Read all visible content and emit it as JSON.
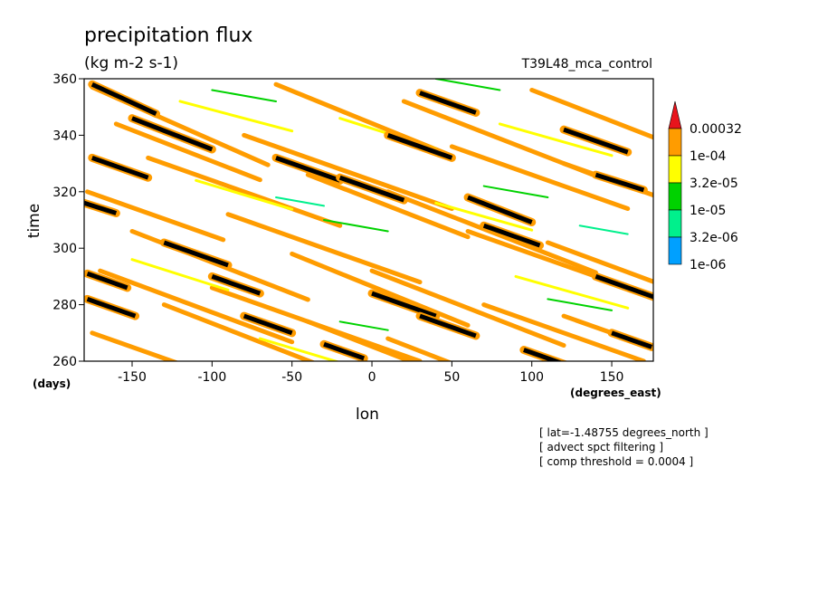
{
  "chart_data": {
    "type": "heatmap",
    "title": "precipitation flux",
    "subtitle": "(kg m-2 s-1)",
    "run_label": "T39L48_mca_control",
    "xlabel": "lon",
    "ylabel": "time",
    "x_unit_label": "(degrees_east)",
    "y_unit_label": "(days)",
    "xlim": [
      -180,
      176
    ],
    "ylim": [
      260,
      360
    ],
    "xticks": [
      -150,
      -100,
      -50,
      0,
      50,
      100,
      150
    ],
    "yticks": [
      260,
      280,
      300,
      320,
      340,
      360
    ],
    "grid": false,
    "legend_position": "right",
    "colorbar": {
      "levels": [
        "0.00032",
        "1e-04",
        "3.2e-05",
        "1e-05",
        "3.2e-06",
        "1e-06"
      ],
      "colors": [
        "#e8141c",
        "#ff9c00",
        "#ffff00",
        "#00d200",
        "#00f08c",
        "#00a0ff"
      ],
      "extend_top_color": "#e8141c"
    },
    "annotations": [
      "[ lat=-1.48755 degrees_north ]",
      "[ advect spct filtering ]",
      "[ comp threshold = 0.0004 ]"
    ],
    "features": [
      {
        "level": "1e-04",
        "x0": -175,
        "t0": 357,
        "slope": -0.25,
        "length": 110
      },
      {
        "level": "1e-04",
        "x0": -160,
        "t0": 344,
        "slope": -0.22,
        "length": 90
      },
      {
        "level": "1e-04",
        "x0": -140,
        "t0": 332,
        "slope": -0.2,
        "length": 120
      },
      {
        "level": "1e-04",
        "x0": -178,
        "t0": 320,
        "slope": -0.2,
        "length": 85
      },
      {
        "level": "1e-04",
        "x0": -150,
        "t0": 306,
        "slope": -0.22,
        "length": 110
      },
      {
        "level": "1e-04",
        "x0": -170,
        "t0": 292,
        "slope": -0.21,
        "length": 120
      },
      {
        "level": "1e-04",
        "x0": -130,
        "t0": 280,
        "slope": -0.22,
        "length": 100
      },
      {
        "level": "1e-04",
        "x0": -175,
        "t0": 270,
        "slope": -0.2,
        "length": 90
      },
      {
        "level": "1e-04",
        "x0": -60,
        "t0": 358,
        "slope": -0.23,
        "length": 110
      },
      {
        "level": "1e-04",
        "x0": -80,
        "t0": 340,
        "slope": -0.2,
        "length": 130
      },
      {
        "level": "1e-04",
        "x0": -40,
        "t0": 326,
        "slope": -0.22,
        "length": 100
      },
      {
        "level": "1e-04",
        "x0": -90,
        "t0": 312,
        "slope": -0.2,
        "length": 120
      },
      {
        "level": "1e-04",
        "x0": -50,
        "t0": 298,
        "slope": -0.23,
        "length": 110
      },
      {
        "level": "1e-04",
        "x0": -100,
        "t0": 286,
        "slope": -0.2,
        "length": 130
      },
      {
        "level": "1e-04",
        "x0": -40,
        "t0": 274,
        "slope": -0.22,
        "length": 100
      },
      {
        "level": "1e-04",
        "x0": 20,
        "t0": 352,
        "slope": -0.22,
        "length": 120
      },
      {
        "level": "1e-04",
        "x0": 50,
        "t0": 336,
        "slope": -0.2,
        "length": 110
      },
      {
        "level": "1e-04",
        "x0": 10,
        "t0": 320,
        "slope": -0.22,
        "length": 130
      },
      {
        "level": "1e-04",
        "x0": 60,
        "t0": 306,
        "slope": -0.2,
        "length": 110
      },
      {
        "level": "1e-04",
        "x0": 0,
        "t0": 292,
        "slope": -0.22,
        "length": 120
      },
      {
        "level": "1e-04",
        "x0": 70,
        "t0": 280,
        "slope": -0.2,
        "length": 100
      },
      {
        "level": "1e-04",
        "x0": 10,
        "t0": 268,
        "slope": -0.22,
        "length": 120
      },
      {
        "level": "1e-04",
        "x0": 100,
        "t0": 356,
        "slope": -0.22,
        "length": 80
      },
      {
        "level": "1e-04",
        "x0": 120,
        "t0": 330,
        "slope": -0.2,
        "length": 60
      },
      {
        "level": "1e-04",
        "x0": 110,
        "t0": 302,
        "slope": -0.21,
        "length": 70
      },
      {
        "level": "1e-04",
        "x0": 120,
        "t0": 276,
        "slope": -0.2,
        "length": 60
      },
      {
        "level": "3.2e-05",
        "x0": -120,
        "t0": 352,
        "slope": -0.15,
        "length": 70
      },
      {
        "level": "3.2e-05",
        "x0": -20,
        "t0": 346,
        "slope": -0.18,
        "length": 60
      },
      {
        "level": "3.2e-05",
        "x0": 80,
        "t0": 344,
        "slope": -0.16,
        "length": 70
      },
      {
        "level": "3.2e-05",
        "x0": -110,
        "t0": 324,
        "slope": -0.17,
        "length": 60
      },
      {
        "level": "3.2e-05",
        "x0": 40,
        "t0": 316,
        "slope": -0.16,
        "length": 60
      },
      {
        "level": "3.2e-05",
        "x0": -150,
        "t0": 296,
        "slope": -0.18,
        "length": 60
      },
      {
        "level": "3.2e-05",
        "x0": 90,
        "t0": 290,
        "slope": -0.16,
        "length": 70
      },
      {
        "level": "3.2e-05",
        "x0": -70,
        "t0": 268,
        "slope": -0.17,
        "length": 60
      },
      {
        "level": "1e-05",
        "x0": -100,
        "t0": 356,
        "slope": -0.1,
        "length": 40
      },
      {
        "level": "1e-05",
        "x0": 40,
        "t0": 360,
        "slope": -0.1,
        "length": 40
      },
      {
        "level": "1e-05",
        "x0": -30,
        "t0": 310,
        "slope": -0.1,
        "length": 40
      },
      {
        "level": "1e-05",
        "x0": 70,
        "t0": 322,
        "slope": -0.1,
        "length": 40
      },
      {
        "level": "1e-05",
        "x0": -20,
        "t0": 274,
        "slope": -0.1,
        "length": 30
      },
      {
        "level": "1e-05",
        "x0": 110,
        "t0": 282,
        "slope": -0.1,
        "length": 40
      },
      {
        "level": "3.2e-06",
        "x0": -60,
        "t0": 318,
        "slope": -0.1,
        "length": 30
      },
      {
        "level": "3.2e-06",
        "x0": 130,
        "t0": 308,
        "slope": -0.1,
        "length": 30
      },
      {
        "level": "0.00032",
        "x0": -175,
        "t0": 358,
        "slope": -0.26,
        "length": 40
      },
      {
        "level": "0.00032",
        "x0": -150,
        "t0": 346,
        "slope": -0.22,
        "length": 50
      },
      {
        "level": "0.00032",
        "x0": -175,
        "t0": 332,
        "slope": -0.2,
        "length": 35
      },
      {
        "level": "0.00032",
        "x0": -180,
        "t0": 316,
        "slope": -0.18,
        "length": 20
      },
      {
        "level": "0.00032",
        "x0": -130,
        "t0": 302,
        "slope": -0.2,
        "length": 40
      },
      {
        "level": "0.00032",
        "x0": -178,
        "t0": 291,
        "slope": -0.2,
        "length": 25
      },
      {
        "level": "0.00032",
        "x0": -178,
        "t0": 282,
        "slope": -0.2,
        "length": 30
      },
      {
        "level": "0.00032",
        "x0": -100,
        "t0": 290,
        "slope": -0.2,
        "length": 30
      },
      {
        "level": "0.00032",
        "x0": -60,
        "t0": 332,
        "slope": -0.2,
        "length": 40
      },
      {
        "level": "0.00032",
        "x0": -20,
        "t0": 325,
        "slope": -0.2,
        "length": 40
      },
      {
        "level": "0.00032",
        "x0": 30,
        "t0": 355,
        "slope": -0.2,
        "length": 35
      },
      {
        "level": "0.00032",
        "x0": 10,
        "t0": 340,
        "slope": -0.2,
        "length": 40
      },
      {
        "level": "0.00032",
        "x0": 60,
        "t0": 318,
        "slope": -0.22,
        "length": 40
      },
      {
        "level": "0.00032",
        "x0": 70,
        "t0": 308,
        "slope": -0.2,
        "length": 35
      },
      {
        "level": "0.00032",
        "x0": 0,
        "t0": 284,
        "slope": -0.2,
        "length": 40
      },
      {
        "level": "0.00032",
        "x0": 30,
        "t0": 276,
        "slope": -0.2,
        "length": 35
      },
      {
        "level": "0.00032",
        "x0": -80,
        "t0": 276,
        "slope": -0.2,
        "length": 30
      },
      {
        "level": "0.00032",
        "x0": -30,
        "t0": 266,
        "slope": -0.2,
        "length": 25
      },
      {
        "level": "0.00032",
        "x0": 120,
        "t0": 342,
        "slope": -0.2,
        "length": 40
      },
      {
        "level": "0.00032",
        "x0": 140,
        "t0": 326,
        "slope": -0.18,
        "length": 30
      },
      {
        "level": "0.00032",
        "x0": 140,
        "t0": 290,
        "slope": -0.2,
        "length": 40
      },
      {
        "level": "0.00032",
        "x0": 150,
        "t0": 270,
        "slope": -0.2,
        "length": 25
      },
      {
        "level": "0.00032",
        "x0": 95,
        "t0": 264,
        "slope": -0.2,
        "length": 30
      }
    ]
  }
}
